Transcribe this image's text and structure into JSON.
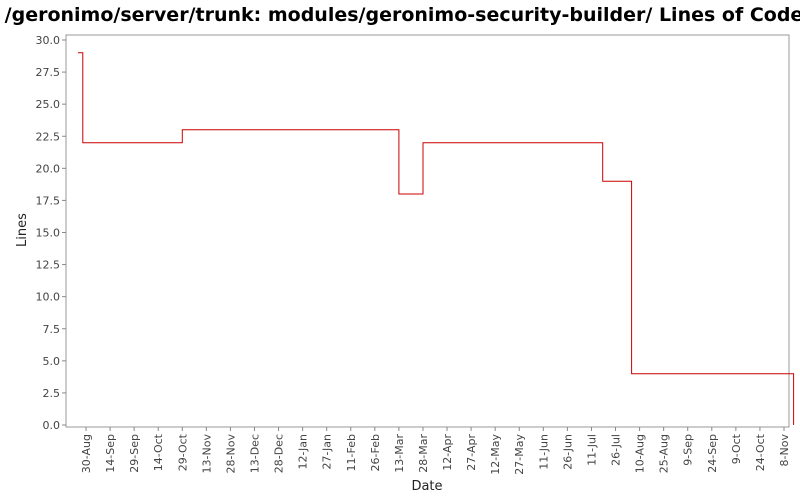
{
  "chart_data": {
    "type": "line",
    "title": "/geronimo/server/trunk: modules/geronimo-security-builder/ Lines of Code",
    "xlabel": "Date",
    "ylabel": "Lines",
    "ylim": [
      0,
      30
    ],
    "yticks": [
      "0.0",
      "2.5",
      "5.0",
      "7.5",
      "10.0",
      "12.5",
      "15.0",
      "17.5",
      "20.0",
      "22.5",
      "25.0",
      "27.5",
      "30.0"
    ],
    "x_tick_labels": [
      "30-Aug",
      "14-Sep",
      "29-Sep",
      "14-Oct",
      "29-Oct",
      "13-Nov",
      "28-Nov",
      "13-Dec",
      "28-Dec",
      "12-Jan",
      "27-Jan",
      "11-Feb",
      "26-Feb",
      "13-Mar",
      "28-Mar",
      "12-Apr",
      "27-Apr",
      "12-May",
      "27-May",
      "11-Jun",
      "26-Jun",
      "11-Jul",
      "26-Jul",
      "10-Aug",
      "25-Aug",
      "9-Sep",
      "24-Sep",
      "9-Oct",
      "24-Oct",
      "8-Nov"
    ],
    "series": [
      {
        "color": "#cc0000",
        "step": true,
        "x": [
          "25-Aug",
          "28-Aug",
          "29-Oct",
          "13-Mar",
          "28-Mar",
          "18-Jul",
          "5-Aug",
          "14-Nov"
        ],
        "y": [
          29,
          22,
          23,
          18,
          22,
          19,
          4,
          0
        ]
      }
    ],
    "grid": false,
    "legend": "none",
    "background": "#ffffff",
    "frame_color": "#999999"
  }
}
